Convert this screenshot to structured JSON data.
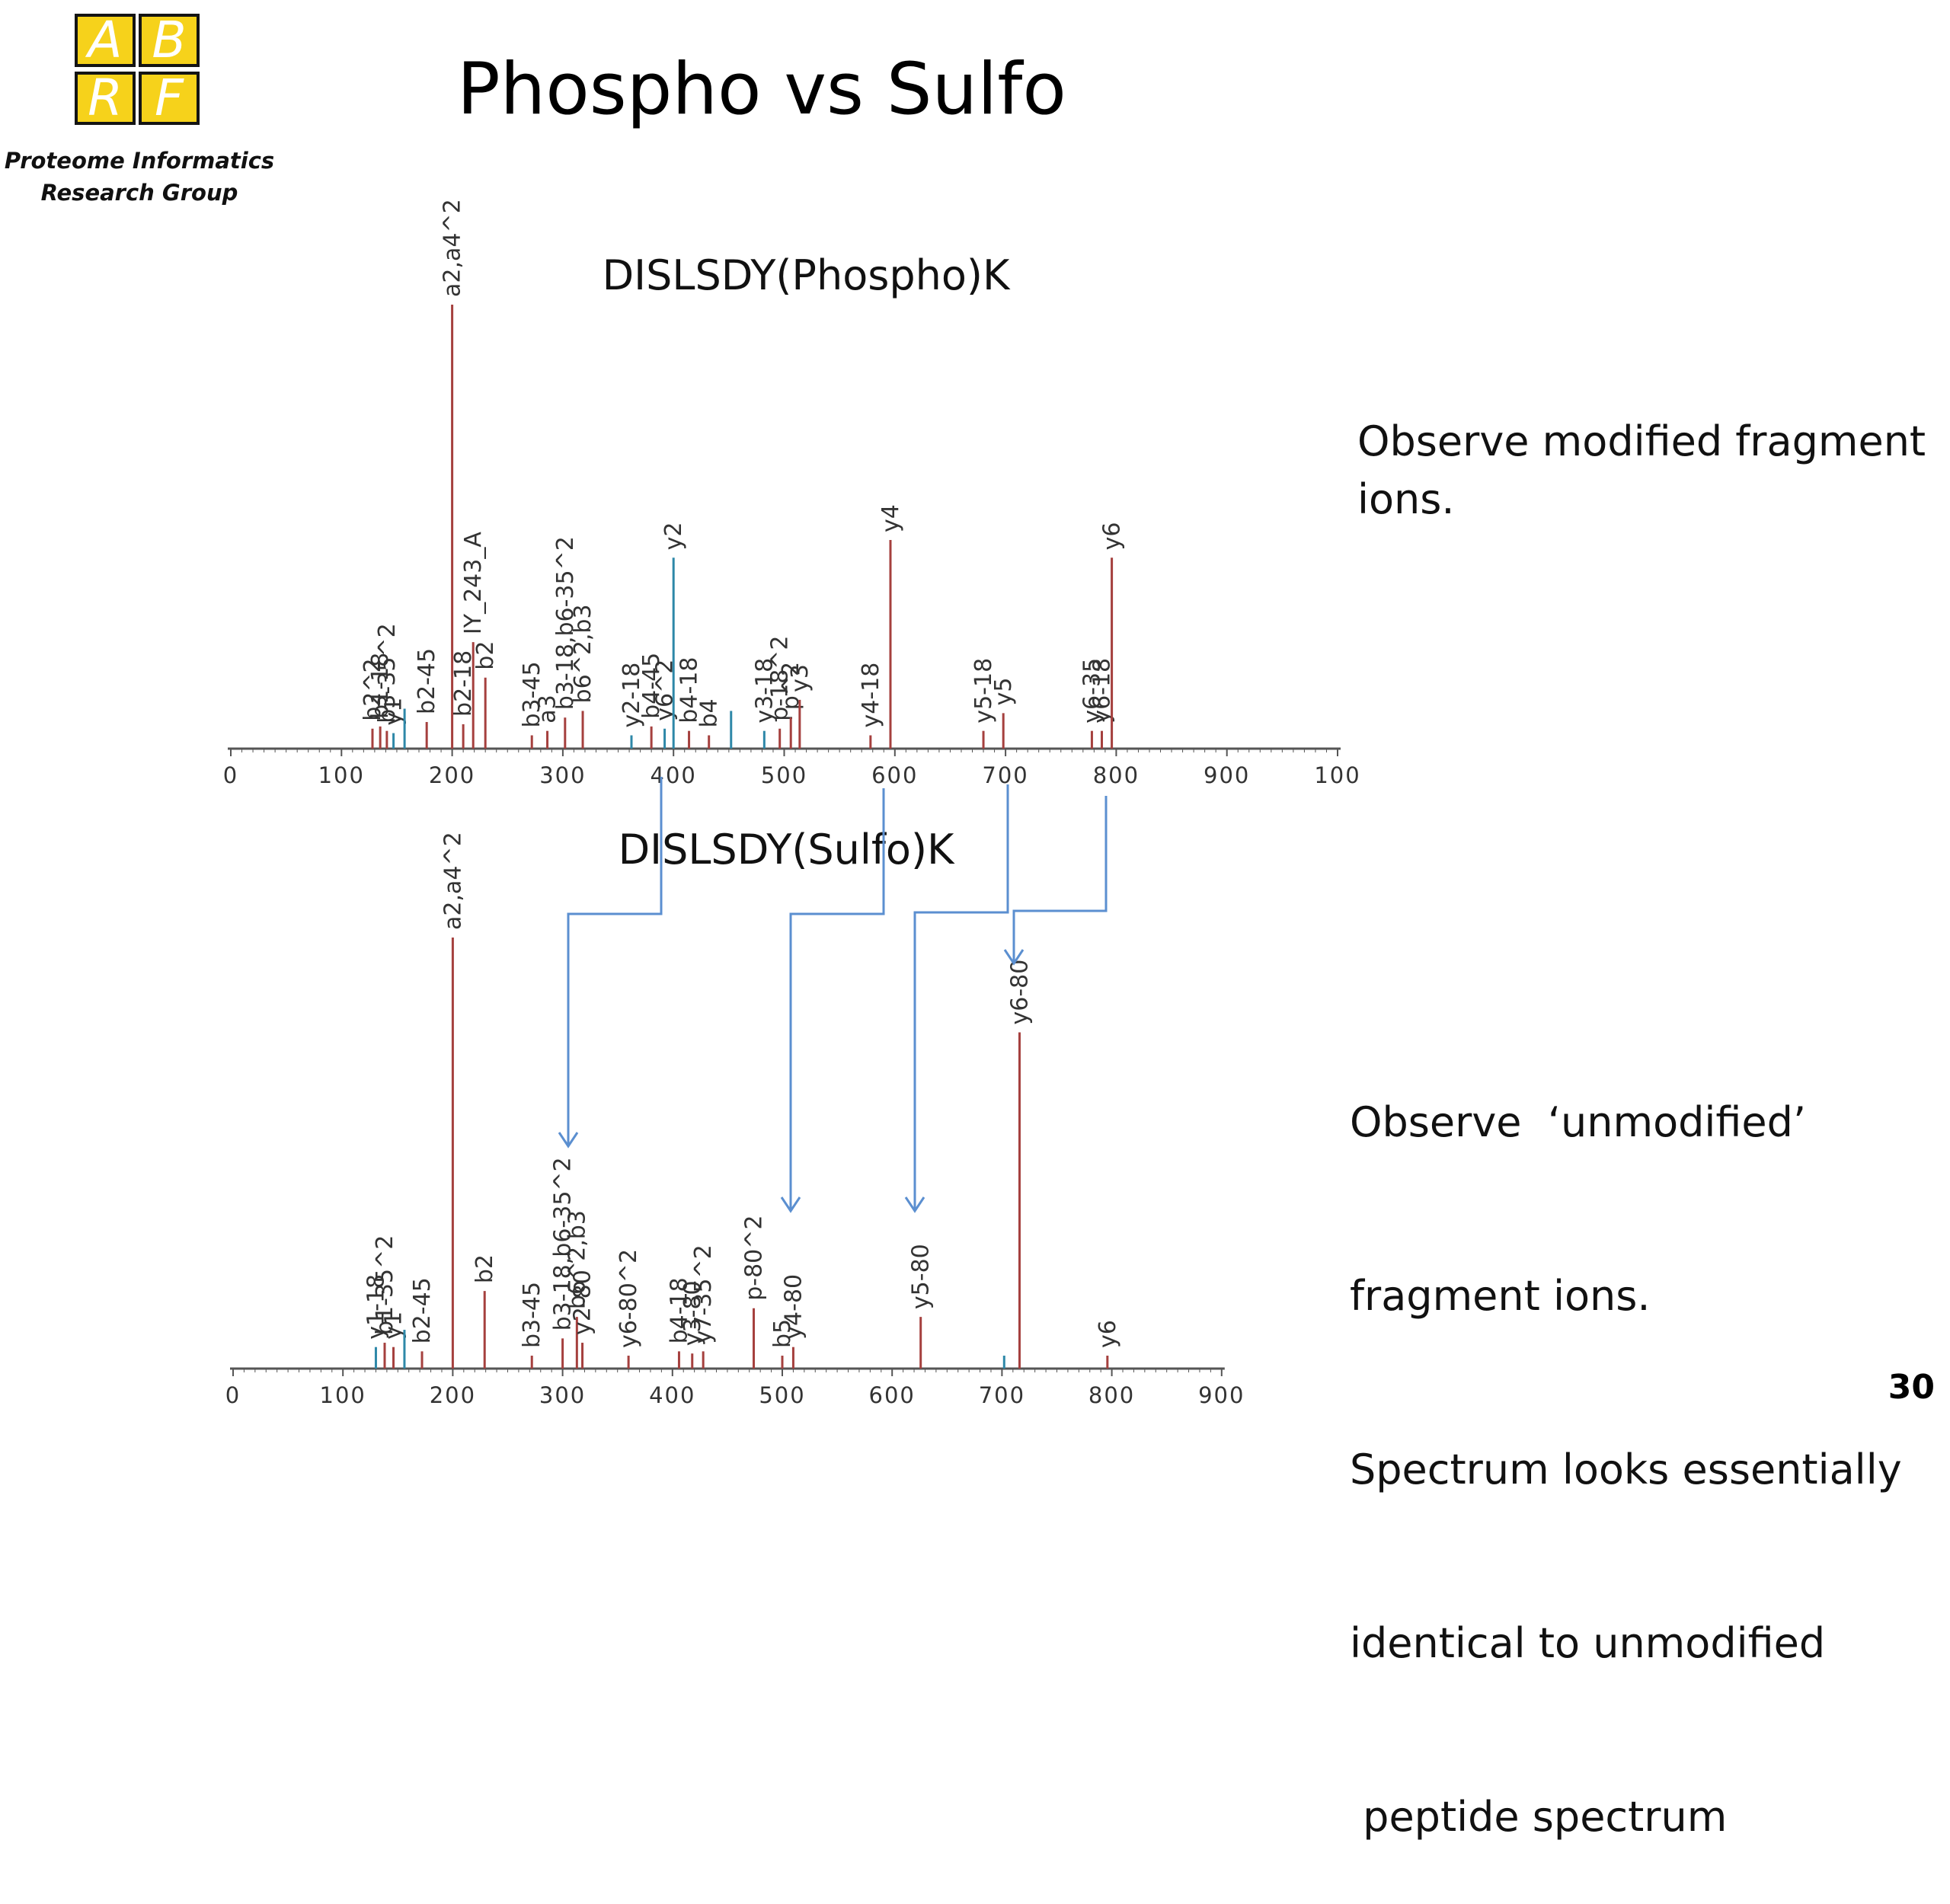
{
  "logo": {
    "letters": [
      "A",
      "B",
      "R",
      "F"
    ]
  },
  "organization": {
    "line1": "Proteome Informatics",
    "line2": "Research Group"
  },
  "slide": {
    "title": "Phospho vs Sulfo",
    "page_number": "30"
  },
  "notes": {
    "top": [
      "Observe modified fragment",
      "ions."
    ],
    "bottom": [
      "Observe  ‘unmodified’",
      "fragment ions.",
      "Spectrum looks essentially",
      "identical to unmodified",
      " peptide spectrum"
    ]
  },
  "colors": {
    "b_ion": "#a5403e",
    "y_ion": "#2e88a8",
    "other": "#8a9aa6",
    "arrow": "#5b8fd0",
    "axis": "#555555"
  },
  "chart_data": [
    {
      "type": "bar",
      "title": "DISLSDY(Phospho)K",
      "xlim": [
        0,
        1000
      ],
      "x_ticks": [
        "0",
        "100",
        "200",
        "300",
        "400",
        "500",
        "600",
        "700",
        "800",
        "900",
        "100"
      ],
      "ylim": [
        0,
        100
      ],
      "peaks": [
        {
          "x": 128,
          "y": 4.5,
          "label": "b2^2",
          "ion": "b"
        },
        {
          "x": 135,
          "y": 5,
          "label": "b1-18",
          "ion": "b"
        },
        {
          "x": 141,
          "y": 4,
          "label": "b3-35^2",
          "ion": "b"
        },
        {
          "x": 147,
          "y": 3.5,
          "label": "y1",
          "ion": "y"
        },
        {
          "x": 157,
          "y": 9,
          "label": "",
          "ion": "y"
        },
        {
          "x": 177,
          "y": 6,
          "label": "b2-45",
          "ion": "b"
        },
        {
          "x": 200,
          "y": 100,
          "label": "a2,a4^2",
          "ion": "b"
        },
        {
          "x": 210,
          "y": 5.5,
          "label": "b2-18",
          "ion": "b"
        },
        {
          "x": 219,
          "y": 24,
          "label": "IY_243_A",
          "ion": "b"
        },
        {
          "x": 230,
          "y": 16,
          "label": "b2",
          "ion": "b"
        },
        {
          "x": 272,
          "y": 3,
          "label": "b3-45",
          "ion": "b"
        },
        {
          "x": 286,
          "y": 4,
          "label": "a3",
          "ion": "b"
        },
        {
          "x": 302,
          "y": 7,
          "label": "b3-18,b6-35^2",
          "ion": "b"
        },
        {
          "x": 318,
          "y": 8.5,
          "label": "b6^2,b3",
          "ion": "b"
        },
        {
          "x": 362,
          "y": 3,
          "label": "y2-18",
          "ion": "y"
        },
        {
          "x": 380,
          "y": 5,
          "label": "b4-45",
          "ion": "b"
        },
        {
          "x": 392,
          "y": 4.5,
          "label": "y6^2",
          "ion": "y"
        },
        {
          "x": 400,
          "y": 43,
          "label": "y2",
          "ion": "y"
        },
        {
          "x": 414,
          "y": 4,
          "label": "b4-18",
          "ion": "b"
        },
        {
          "x": 432,
          "y": 3,
          "label": "b4",
          "ion": "b"
        },
        {
          "x": 452,
          "y": 8.5,
          "label": "",
          "ion": "y"
        },
        {
          "x": 482,
          "y": 4,
          "label": "y3-18",
          "ion": "y"
        },
        {
          "x": 496,
          "y": 4.5,
          "label": "p-18^2",
          "ion": "b"
        },
        {
          "x": 506,
          "y": 7,
          "label": "p^2",
          "ion": "b"
        },
        {
          "x": 514,
          "y": 11,
          "label": "y3",
          "ion": "b"
        },
        {
          "x": 578,
          "y": 3,
          "label": "y4-18",
          "ion": "b"
        },
        {
          "x": 596,
          "y": 47,
          "label": "y4",
          "ion": "b"
        },
        {
          "x": 680,
          "y": 4,
          "label": "y5-18",
          "ion": "b"
        },
        {
          "x": 698,
          "y": 8,
          "label": "y5",
          "ion": "b"
        },
        {
          "x": 778,
          "y": 4,
          "label": "y6-35",
          "ion": "b"
        },
        {
          "x": 787,
          "y": 4,
          "label": "y6-18",
          "ion": "b"
        },
        {
          "x": 796,
          "y": 43,
          "label": "y6",
          "ion": "b"
        }
      ]
    },
    {
      "type": "bar",
      "title": "DISLSDY(Sulfo)K",
      "xlim": [
        0,
        900
      ],
      "x_ticks": [
        "0",
        "100",
        "200",
        "300",
        "400",
        "500",
        "600",
        "700",
        "800",
        "900"
      ],
      "ylim": [
        0,
        100
      ],
      "peaks": [
        {
          "x": 130,
          "y": 5,
          "label": "y1-18",
          "ion": "y"
        },
        {
          "x": 138,
          "y": 6,
          "label": "b1-35^2",
          "ion": "b"
        },
        {
          "x": 146,
          "y": 5,
          "label": "y1",
          "ion": "b"
        },
        {
          "x": 156,
          "y": 9,
          "label": "",
          "ion": "y"
        },
        {
          "x": 172,
          "y": 4,
          "label": "b2-45",
          "ion": "b"
        },
        {
          "x": 200,
          "y": 100,
          "label": "a2,a4^2",
          "ion": "b"
        },
        {
          "x": 229,
          "y": 18,
          "label": "b2",
          "ion": "b"
        },
        {
          "x": 272,
          "y": 3,
          "label": "b3-45",
          "ion": "b"
        },
        {
          "x": 300,
          "y": 7,
          "label": "b3-18,b6-35^2",
          "ion": "b"
        },
        {
          "x": 313,
          "y": 12,
          "label": "b6^2,b3",
          "ion": "b"
        },
        {
          "x": 318,
          "y": 6,
          "label": "y2-80",
          "ion": "b"
        },
        {
          "x": 360,
          "y": 3,
          "label": "y6-80^2",
          "ion": "b"
        },
        {
          "x": 406,
          "y": 4,
          "label": "b4-18",
          "ion": "b"
        },
        {
          "x": 418,
          "y": 3.5,
          "label": "y3-80",
          "ion": "b"
        },
        {
          "x": 428,
          "y": 4,
          "label": "y7-35^2",
          "ion": "b"
        },
        {
          "x": 474,
          "y": 14,
          "label": "p-80^2",
          "ion": "b"
        },
        {
          "x": 500,
          "y": 3,
          "label": "b5",
          "ion": "b"
        },
        {
          "x": 510,
          "y": 5,
          "label": "y4-80",
          "ion": "b"
        },
        {
          "x": 626,
          "y": 12,
          "label": "y5-80",
          "ion": "b"
        },
        {
          "x": 702,
          "y": 3,
          "label": "",
          "ion": "y"
        },
        {
          "x": 716,
          "y": 78,
          "label": "y6-80",
          "ion": "b"
        },
        {
          "x": 796,
          "y": 3,
          "label": "y6",
          "ion": "b"
        }
      ]
    }
  ]
}
